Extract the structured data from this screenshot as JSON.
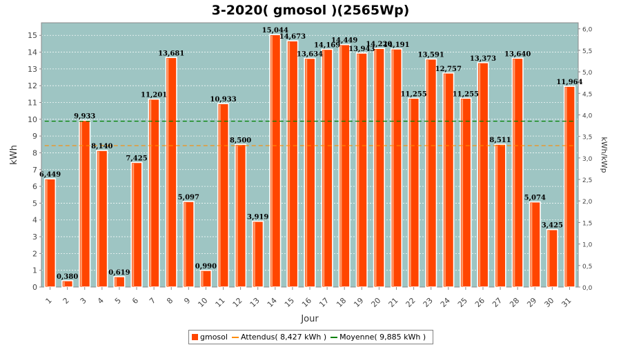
{
  "chart_data": {
    "type": "bar",
    "title": "3-2020( gmosol )(2565Wp)",
    "xlabel": "Jour",
    "ylabel": "kWh",
    "y2label": "kWh/kWp",
    "ylim": [
      0,
      15.75
    ],
    "y2lim": [
      0,
      6.14
    ],
    "yticks": [
      0,
      1,
      2,
      3,
      4,
      5,
      6,
      7,
      8,
      9,
      10,
      11,
      12,
      13,
      14,
      15
    ],
    "y2ticks": [
      "0,0",
      "0,5",
      "1,0",
      "1,5",
      "2,0",
      "2,5",
      "3,0",
      "3,5",
      "4,0",
      "4,5",
      "5,0",
      "5,5",
      "6,0"
    ],
    "categories": [
      "1",
      "2",
      "3",
      "4",
      "5",
      "6",
      "7",
      "8",
      "9",
      "10",
      "11",
      "12",
      "13",
      "14",
      "15",
      "16",
      "17",
      "18",
      "19",
      "20",
      "21",
      "22",
      "23",
      "24",
      "25",
      "26",
      "27",
      "28",
      "29",
      "30",
      "31"
    ],
    "series": [
      {
        "name": "gmosol",
        "color": "#ff4500",
        "values": [
          6.449,
          0.38,
          9.933,
          8.14,
          0.619,
          7.425,
          11.201,
          13.681,
          5.097,
          0.99,
          10.933,
          8.5,
          3.919,
          15.044,
          14.673,
          13.634,
          14.169,
          14.449,
          13.943,
          14.22,
          14.191,
          11.255,
          13.591,
          12.757,
          11.255,
          13.373,
          8.511,
          13.64,
          5.074,
          3.425,
          11.964
        ],
        "labels": [
          "6,449",
          "0,380",
          "9,933",
          "8,140",
          "0,619",
          "7,425",
          "11,201",
          "13,681",
          "5,097",
          "0,990",
          "10,933",
          "8,500",
          "3,919",
          "15,044",
          "14,673",
          "13,634",
          "14,169",
          "14,449",
          "13,943",
          "14,220",
          "14,191",
          "11,255",
          "13,591",
          "12,757",
          "11,255",
          "13,373",
          "8,511",
          "13,640",
          "5,074",
          "3,425",
          "11,964"
        ]
      }
    ],
    "reference_lines": [
      {
        "name": "Attendus",
        "legend": "Attendus( 8,427 kWh )",
        "value": 8.427,
        "color": "#ff8c00"
      },
      {
        "name": "Moyenne",
        "legend": "Moyenne( 9,885 kWh )",
        "value": 9.885,
        "color": "#008000"
      }
    ],
    "plot_background": "#9ec5c3",
    "grid": true,
    "legend_position": "bottom"
  }
}
